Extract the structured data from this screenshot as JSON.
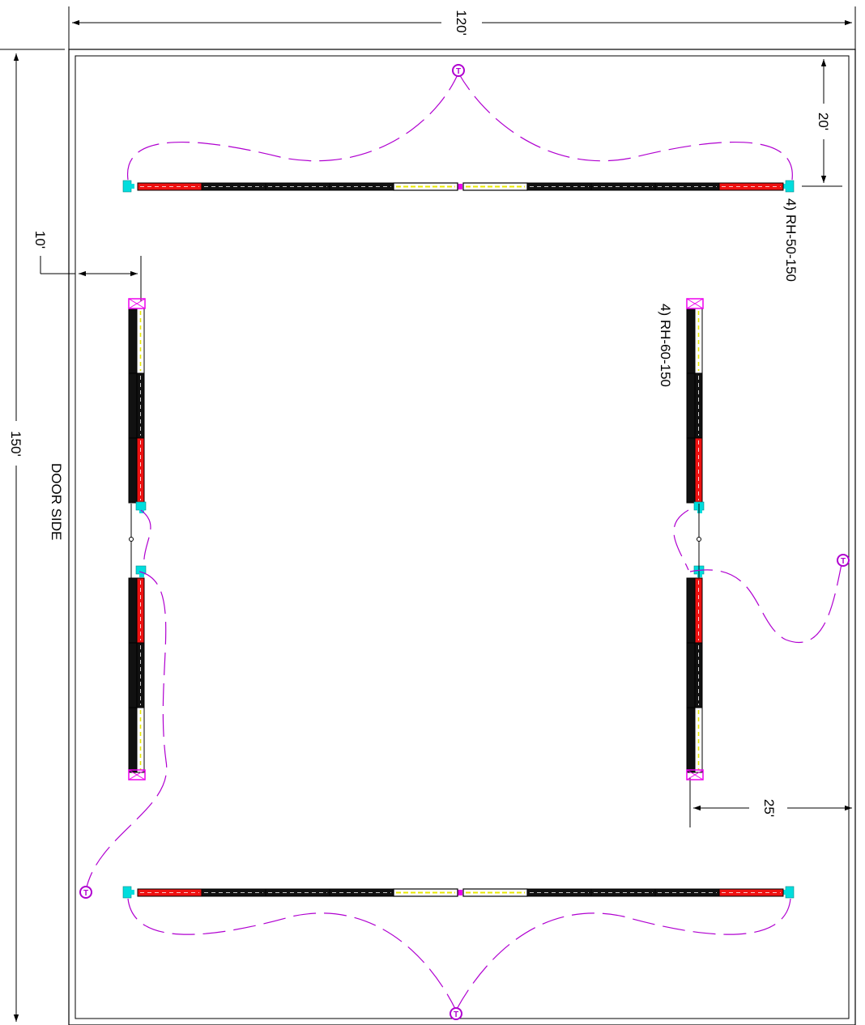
{
  "dimensions": {
    "width_overall": "120'",
    "height_overall": "150'",
    "top_offset": "20'",
    "left_offset": "10'",
    "right_offset": "25'"
  },
  "labels": {
    "top_run": "4) RH-50-150",
    "right_run": "4) RH-60-150",
    "door_side": "DOOR SIDE"
  },
  "thermostat_glyph": "T",
  "colors": {
    "heater_black": "#111111",
    "heater_red": "#ee1111",
    "heater_yellow_core": "#e8e800",
    "junction_cyan": "#00dddd",
    "end_cap_magenta": "#ee00ee",
    "wire_purple": "#b000d0",
    "outline": "#000000"
  }
}
